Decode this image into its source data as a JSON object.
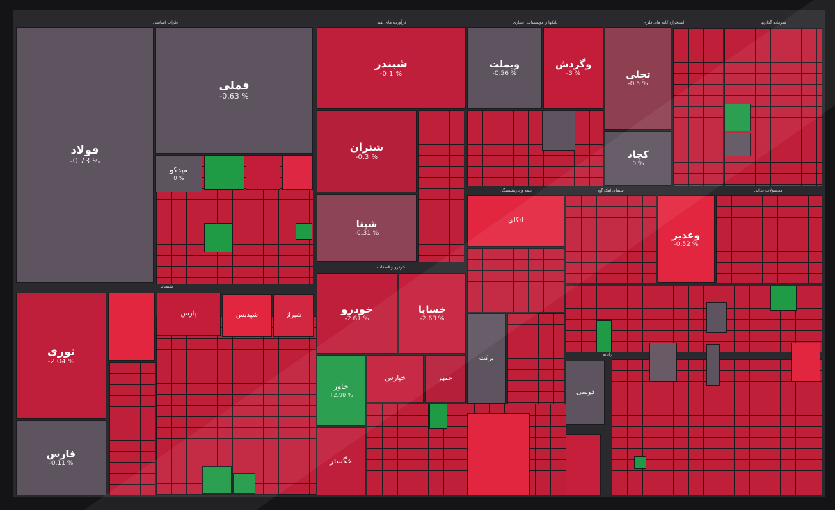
{
  "chart_data": {
    "type": "heatmap",
    "title": "",
    "colors": {
      "down": "#c51f3b",
      "down_strong": "#e2263f",
      "flat": "#5e5460",
      "up": "#1f9a45"
    },
    "sectors": [
      {
        "label": "فلزات اساسی"
      },
      {
        "label": "فرآورده های نفتی"
      },
      {
        "label": "بانکها و موسسات اعتباری"
      },
      {
        "label": "استخراج کانه های فلزی"
      },
      {
        "label": "سرمایه گذاریها"
      },
      {
        "label": "خودرو و قطعات"
      },
      {
        "label": "شیمیایی"
      },
      {
        "label": "بیمه و بازنشستگی"
      },
      {
        "label": "سیمان آهک گچ"
      },
      {
        "label": "محصولات غذایی"
      },
      {
        "label": "رایانه"
      }
    ],
    "symbols": [
      {
        "name": "فولاد",
        "change": "-0.73 %"
      },
      {
        "name": "فملی",
        "change": "-0.63 %"
      },
      {
        "name": "میدکو",
        "change": "0 %"
      },
      {
        "name": "شبندر",
        "change": "-0.1 %"
      },
      {
        "name": "شتران",
        "change": "-0.3 %"
      },
      {
        "name": "شپنا",
        "change": "-0.31 %"
      },
      {
        "name": "شپدیس",
        "change": ""
      },
      {
        "name": "وبملت",
        "change": "-0.56 %"
      },
      {
        "name": "وگردش",
        "change": "-3 %"
      },
      {
        "name": "تجلی",
        "change": "-0.5 %"
      },
      {
        "name": "کچاد",
        "change": "0 %"
      },
      {
        "name": "نوری",
        "change": "-2.04 %"
      },
      {
        "name": "فارس",
        "change": "-0.11 %"
      },
      {
        "name": "خودرو",
        "change": "-2.61 %"
      },
      {
        "name": "خساپا",
        "change": "-2.63 %"
      },
      {
        "name": "خاور",
        "change": "+2.90 %"
      },
      {
        "name": "خگستر",
        "change": ""
      },
      {
        "name": "وغدیر",
        "change": "-0.52 %"
      },
      {
        "name": "اتکای",
        "change": ""
      },
      {
        "name": "دوسی",
        "change": ""
      },
      {
        "name": "برکت",
        "change": ""
      },
      {
        "name": "پارس",
        "change": ""
      },
      {
        "name": "شیراز",
        "change": ""
      },
      {
        "name": "خپارس",
        "change": ""
      },
      {
        "name": "خمهر",
        "change": ""
      }
    ]
  }
}
